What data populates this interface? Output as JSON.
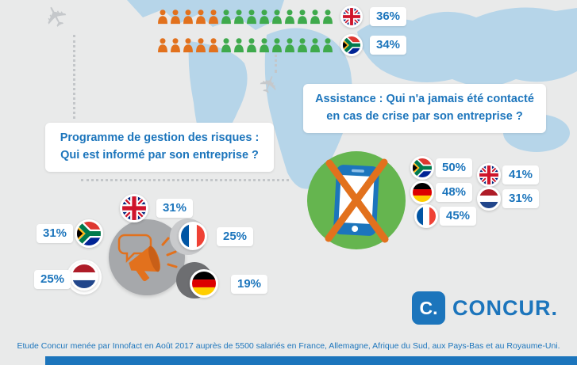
{
  "palette": {
    "blue": "#1c75bc",
    "orange": "#e2711d",
    "green": "#3faa4c",
    "map_blue": "#b6d5e9",
    "gray_circle": "#a6a8ab",
    "green_circle": "#65b54f",
    "background": "#e9eaea"
  },
  "top_chart": {
    "rows": [
      {
        "flag": "uk",
        "country": "Royaume-Uni",
        "value": "36%",
        "highlighted": 5,
        "total": 14
      },
      {
        "flag": "za",
        "country": "Afrique du Sud",
        "value": "34%",
        "highlighted": 5,
        "total": 14
      }
    ]
  },
  "questions": {
    "risk_program": {
      "line1": "Programme de gestion des risques :",
      "line2": "Qui est informé par son entreprise ?"
    },
    "assistance": {
      "line1": "Assistance : Qui n'a jamais été contacté",
      "line2": "en cas de crise par son entreprise ?"
    }
  },
  "risk_cluster": {
    "items": [
      {
        "flag": "uk",
        "country": "Royaume-Uni",
        "value": "31%"
      },
      {
        "flag": "za",
        "country": "Afrique du Sud",
        "value": "31%"
      },
      {
        "flag": "fr",
        "country": "France",
        "value": "25%"
      },
      {
        "flag": "nl",
        "country": "Pays-Bas",
        "value": "25%"
      },
      {
        "flag": "de",
        "country": "Allemagne",
        "value": "19%"
      }
    ]
  },
  "assistance_cluster": {
    "items": [
      {
        "flag": "za",
        "country": "Afrique du Sud",
        "value": "50%"
      },
      {
        "flag": "de",
        "country": "Allemagne",
        "value": "48%"
      },
      {
        "flag": "fr",
        "country": "France",
        "value": "45%"
      },
      {
        "flag": "uk",
        "country": "Royaume-Uni",
        "value": "41%"
      },
      {
        "flag": "nl",
        "country": "Pays-Bas",
        "value": "31%"
      }
    ]
  },
  "logo": {
    "mark": "C.",
    "name": "CONCUR."
  },
  "footnote": "Etude Concur menée par Innofact en Août 2017 auprès de 5500 salariés en France, Allemagne, Afrique du Sud, aux Pays-Bas et au Royaume-Uni.",
  "chart_data": [
    {
      "type": "bar",
      "title": "Pictogrammes voyageurs (haut de l'infographie)",
      "categories": [
        "Royaume-Uni",
        "Afrique du Sud"
      ],
      "values": [
        36,
        34
      ],
      "unit": "%",
      "note": "5 icônes orange sur 14 personnages par rangée"
    },
    {
      "type": "bar",
      "title": "Programme de gestion des risques : Qui est informé par son entreprise ?",
      "categories": [
        "Royaume-Uni",
        "Afrique du Sud",
        "France",
        "Pays-Bas",
        "Allemagne"
      ],
      "values": [
        31,
        31,
        25,
        25,
        19
      ],
      "unit": "%"
    },
    {
      "type": "bar",
      "title": "Assistance : Qui n'a jamais été contacté en cas de crise par son entreprise ?",
      "categories": [
        "Afrique du Sud",
        "Allemagne",
        "France",
        "Royaume-Uni",
        "Pays-Bas"
      ],
      "values": [
        50,
        48,
        45,
        41,
        31
      ],
      "unit": "%"
    }
  ]
}
